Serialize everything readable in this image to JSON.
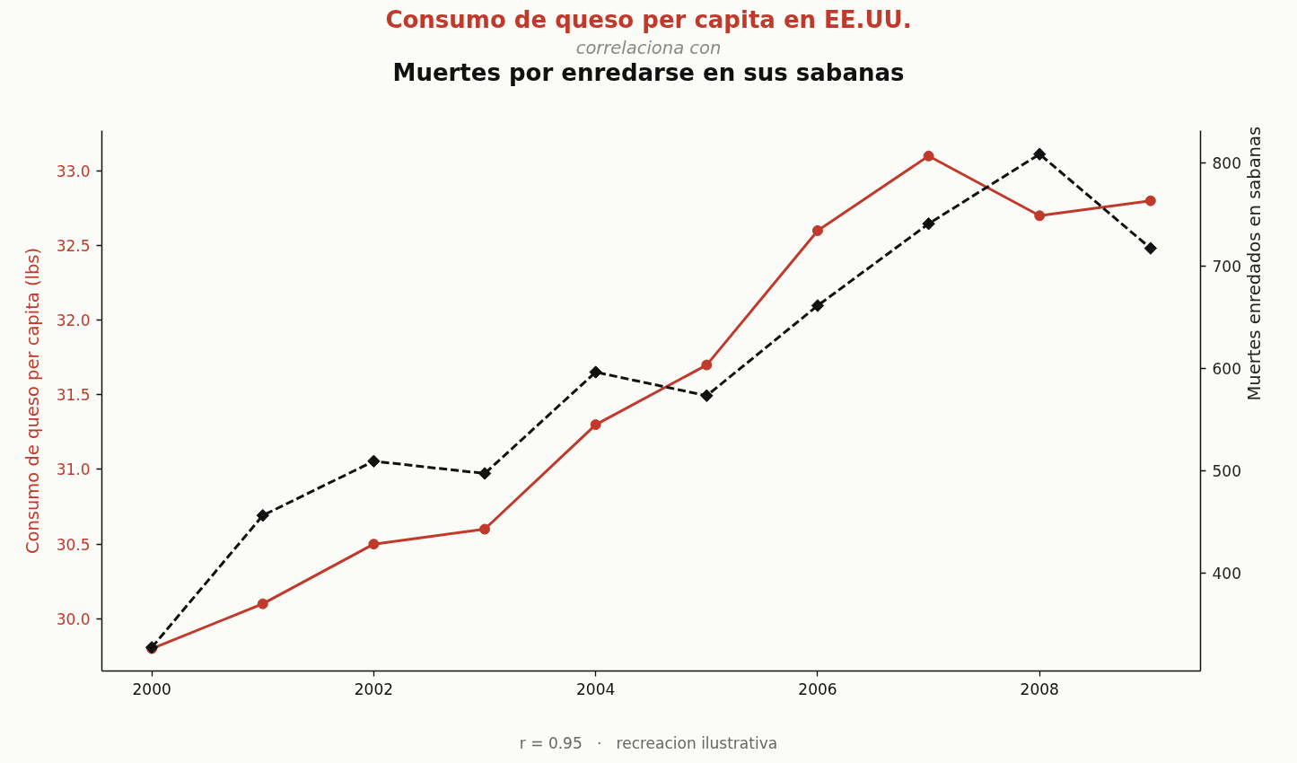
{
  "chart_data": {
    "type": "line",
    "subtitle": "correlaciona con",
    "ylabel": "Consumo de queso per capita (lbs)",
    "y2label": "Muertes enredados en sabanas",
    "x": [
      2000,
      2001,
      2002,
      2003,
      2004,
      2005,
      2006,
      2007,
      2008,
      2009
    ],
    "series": [
      {
        "name": "Consumo de queso per capita en EE.UU.",
        "color": "#c0392b",
        "marker": "circle",
        "line_style": "solid",
        "values": [
          29.8,
          30.1,
          30.5,
          30.6,
          31.3,
          31.7,
          32.6,
          33.1,
          32.7,
          32.8
        ]
      },
      {
        "name": "Muertes por enredarse en sus sabanas",
        "color": "#111111",
        "axis": "y2",
        "marker": "diamond",
        "line_style": "dashed",
        "values": [
          327,
          456,
          509,
          497,
          596,
          573,
          661,
          741,
          809,
          717
        ]
      }
    ],
    "xlim": [
      1999.55,
      2009.45
    ],
    "xticks": [
      2000,
      2002,
      2004,
      2006,
      2008
    ],
    "ylim": [
      29.65,
      33.27
    ],
    "yticks": [
      {
        "value": 30,
        "label": "30.0"
      },
      30.5,
      {
        "value": 31,
        "label": "31.0"
      },
      31.5,
      {
        "value": 32,
        "label": "32.0"
      },
      32.5,
      {
        "value": 33,
        "label": "33.0"
      }
    ],
    "y2lim": [
      304,
      832
    ],
    "y2ticks": [
      400,
      500,
      600,
      700,
      800
    ],
    "annotations": [
      "r = 0.95   ·   recreacion ilustrativa"
    ]
  }
}
